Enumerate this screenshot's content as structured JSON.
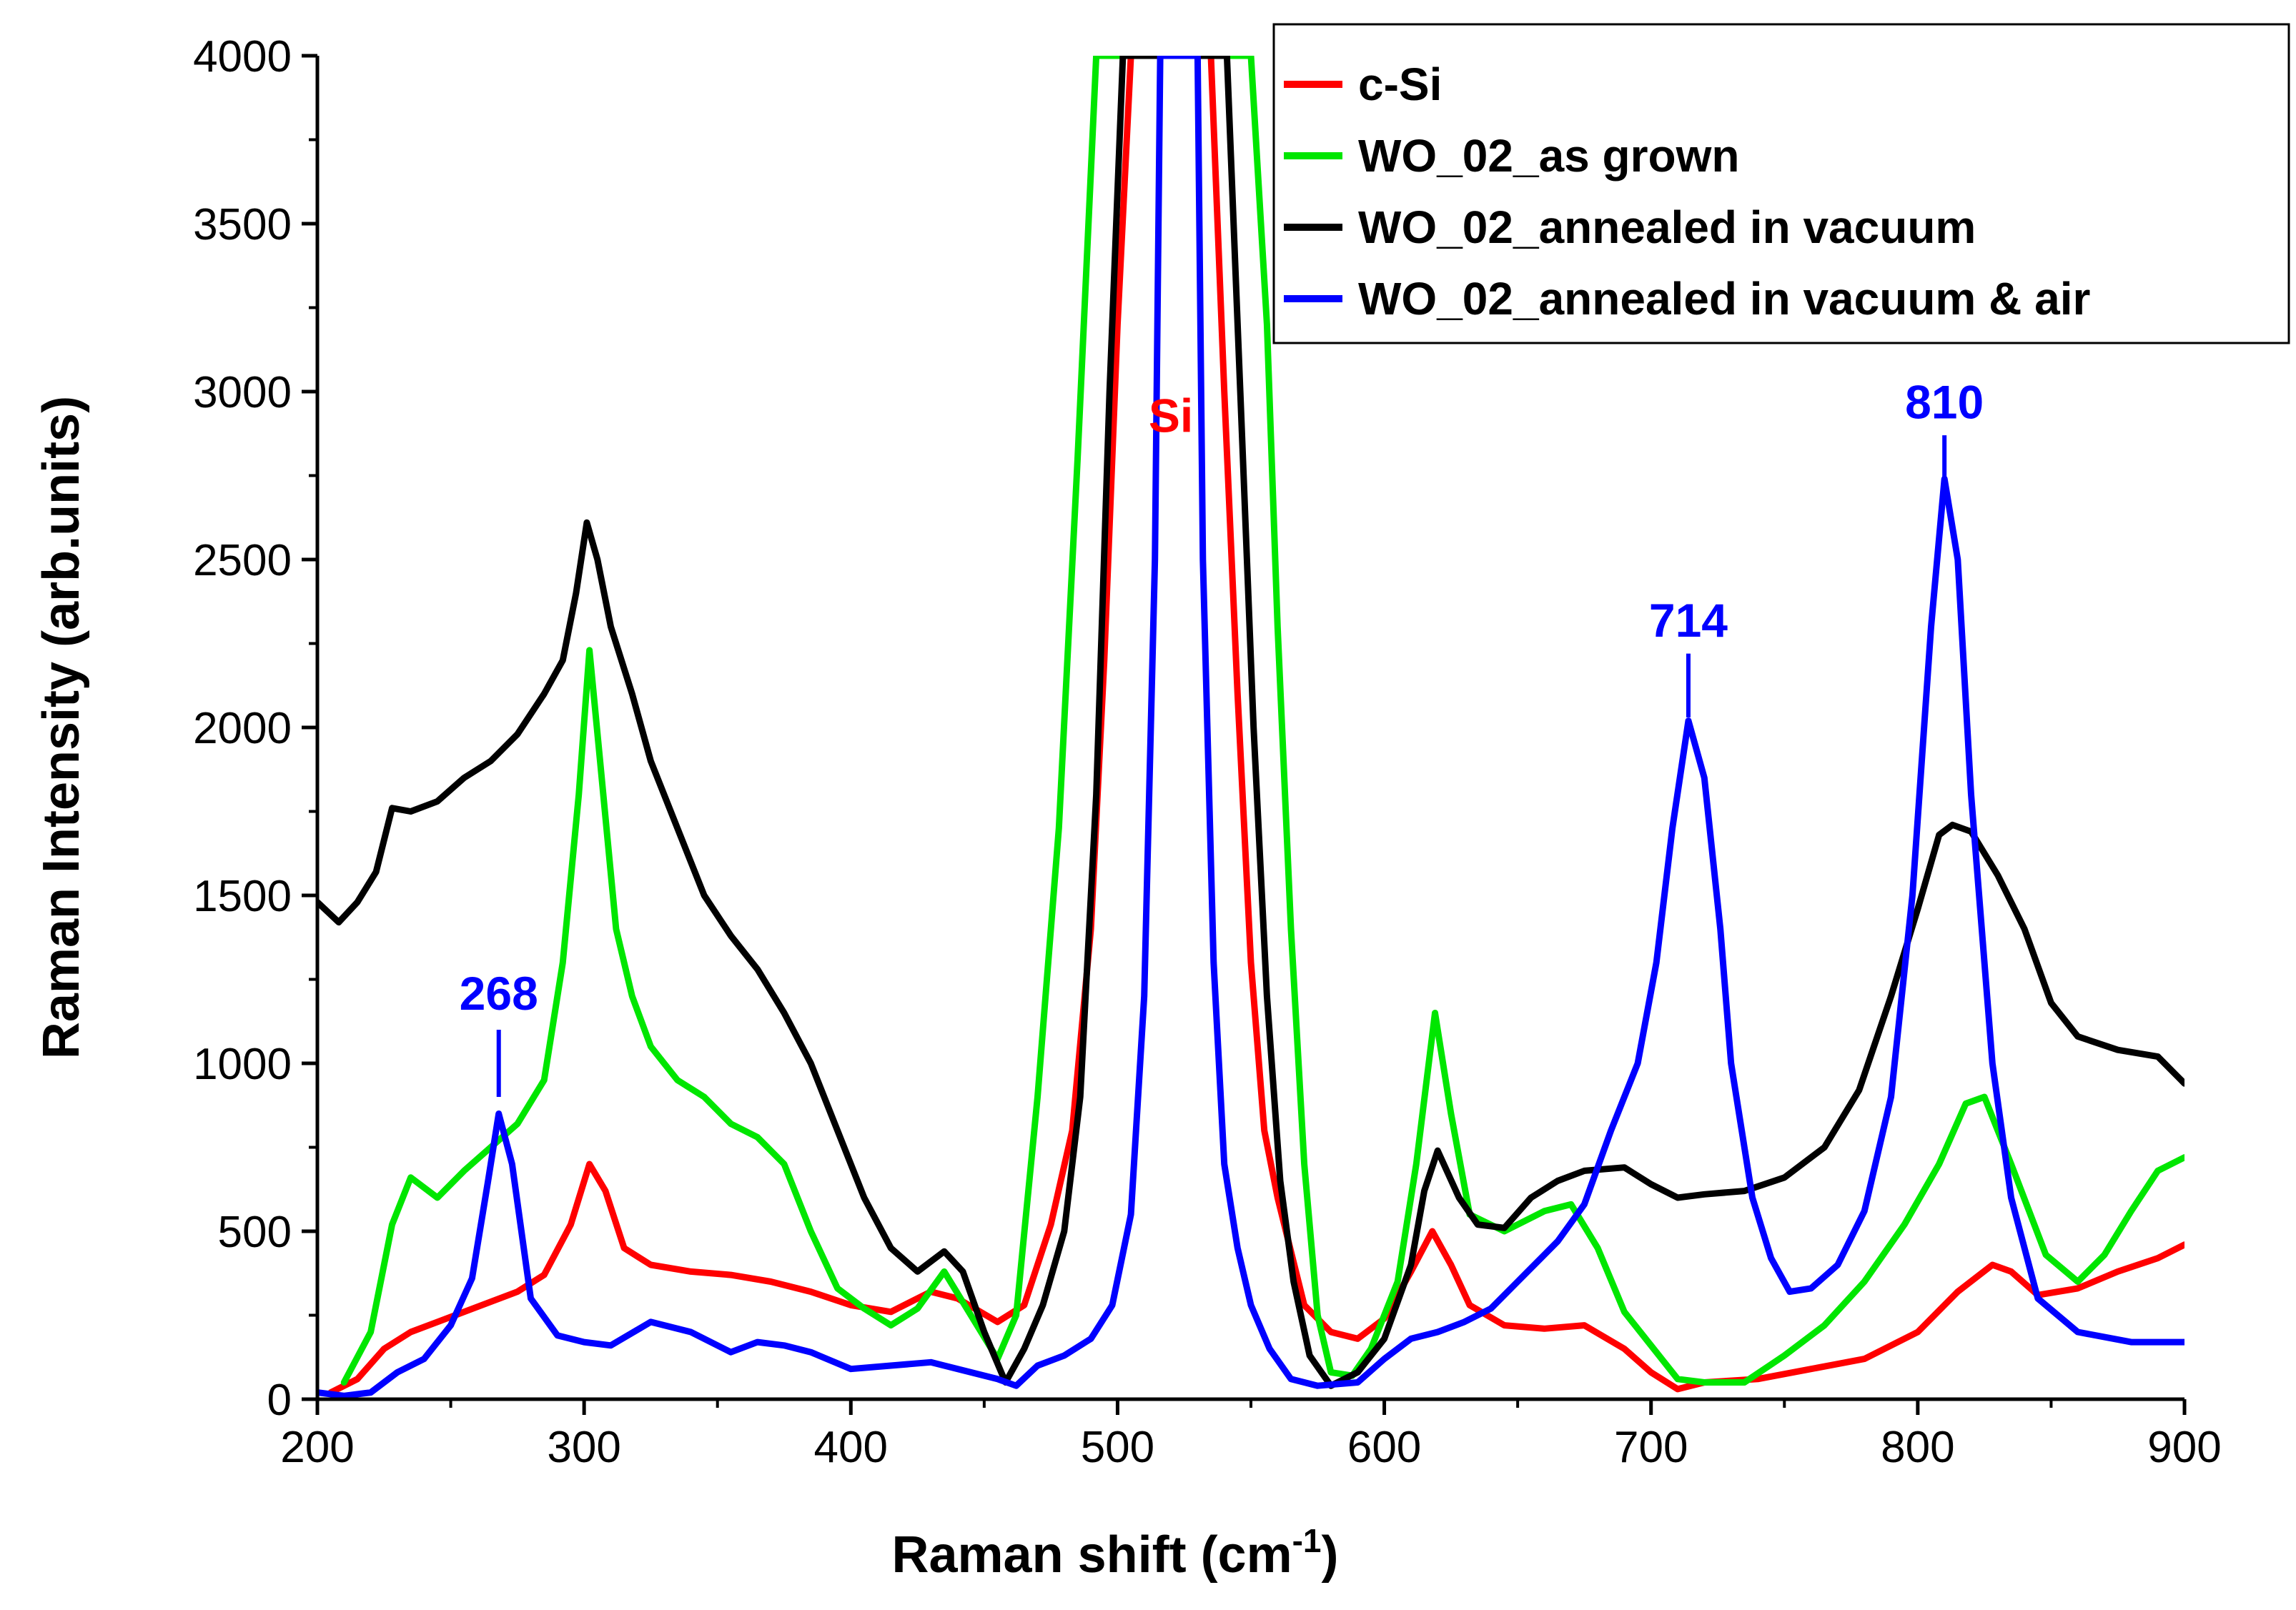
{
  "chart_data": {
    "type": "line",
    "xlabel": "Raman shift (cm",
    "xlabel_sup": "-1",
    "xlabel_end": ")",
    "ylabel": "Raman Intensity (arb.units)",
    "xlim": [
      200,
      900
    ],
    "ylim": [
      0,
      4000
    ],
    "xticks": [
      200,
      300,
      400,
      500,
      600,
      700,
      800,
      900
    ],
    "yticks": [
      0,
      500,
      1000,
      1500,
      2000,
      2500,
      3000,
      3500,
      4000
    ],
    "legend_position": "top-right",
    "series": [
      {
        "name": "c-Si",
        "color": "#ff0000",
        "points": [
          [
            205,
            20
          ],
          [
            215,
            60
          ],
          [
            225,
            150
          ],
          [
            235,
            200
          ],
          [
            245,
            230
          ],
          [
            255,
            260
          ],
          [
            265,
            290
          ],
          [
            275,
            320
          ],
          [
            285,
            370
          ],
          [
            295,
            520
          ],
          [
            302,
            700
          ],
          [
            308,
            620
          ],
          [
            315,
            450
          ],
          [
            325,
            400
          ],
          [
            340,
            380
          ],
          [
            355,
            370
          ],
          [
            370,
            350
          ],
          [
            385,
            320
          ],
          [
            400,
            280
          ],
          [
            415,
            260
          ],
          [
            430,
            320
          ],
          [
            440,
            300
          ],
          [
            455,
            230
          ],
          [
            465,
            280
          ],
          [
            475,
            520
          ],
          [
            483,
            800
          ],
          [
            490,
            1400
          ],
          [
            495,
            2200
          ],
          [
            500,
            3200
          ],
          [
            505,
            4000
          ],
          [
            535,
            4000
          ],
          [
            540,
            3000
          ],
          [
            545,
            2100
          ],
          [
            550,
            1300
          ],
          [
            555,
            800
          ],
          [
            560,
            600
          ],
          [
            570,
            280
          ],
          [
            580,
            200
          ],
          [
            590,
            180
          ],
          [
            600,
            240
          ],
          [
            610,
            380
          ],
          [
            618,
            500
          ],
          [
            625,
            400
          ],
          [
            632,
            280
          ],
          [
            645,
            220
          ],
          [
            660,
            210
          ],
          [
            675,
            220
          ],
          [
            690,
            150
          ],
          [
            700,
            80
          ],
          [
            710,
            30
          ],
          [
            720,
            50
          ],
          [
            740,
            60
          ],
          [
            760,
            90
          ],
          [
            780,
            120
          ],
          [
            800,
            200
          ],
          [
            815,
            320
          ],
          [
            828,
            400
          ],
          [
            835,
            380
          ],
          [
            845,
            310
          ],
          [
            860,
            330
          ],
          [
            875,
            380
          ],
          [
            890,
            420
          ],
          [
            900,
            460
          ]
        ]
      },
      {
        "name": "WO_02_as grown",
        "color": "#00e600",
        "points": [
          [
            210,
            50
          ],
          [
            220,
            200
          ],
          [
            228,
            520
          ],
          [
            235,
            660
          ],
          [
            245,
            600
          ],
          [
            255,
            680
          ],
          [
            265,
            750
          ],
          [
            275,
            820
          ],
          [
            285,
            950
          ],
          [
            292,
            1300
          ],
          [
            298,
            1800
          ],
          [
            302,
            2230
          ],
          [
            306,
            1900
          ],
          [
            312,
            1400
          ],
          [
            318,
            1200
          ],
          [
            325,
            1050
          ],
          [
            335,
            950
          ],
          [
            345,
            900
          ],
          [
            355,
            820
          ],
          [
            365,
            780
          ],
          [
            375,
            700
          ],
          [
            385,
            500
          ],
          [
            395,
            330
          ],
          [
            405,
            270
          ],
          [
            415,
            220
          ],
          [
            425,
            270
          ],
          [
            435,
            380
          ],
          [
            445,
            250
          ],
          [
            455,
            120
          ],
          [
            462,
            250
          ],
          [
            470,
            900
          ],
          [
            478,
            1700
          ],
          [
            485,
            2800
          ],
          [
            492,
            4000
          ],
          [
            550,
            4000
          ],
          [
            556,
            3200
          ],
          [
            560,
            2300
          ],
          [
            565,
            1400
          ],
          [
            570,
            700
          ],
          [
            575,
            250
          ],
          [
            580,
            80
          ],
          [
            588,
            70
          ],
          [
            595,
            150
          ],
          [
            605,
            350
          ],
          [
            612,
            700
          ],
          [
            619,
            1150
          ],
          [
            625,
            850
          ],
          [
            632,
            550
          ],
          [
            645,
            500
          ],
          [
            660,
            560
          ],
          [
            670,
            580
          ],
          [
            680,
            450
          ],
          [
            690,
            260
          ],
          [
            700,
            160
          ],
          [
            710,
            60
          ],
          [
            720,
            50
          ],
          [
            735,
            50
          ],
          [
            750,
            130
          ],
          [
            765,
            220
          ],
          [
            780,
            350
          ],
          [
            795,
            520
          ],
          [
            808,
            700
          ],
          [
            818,
            880
          ],
          [
            825,
            900
          ],
          [
            835,
            700
          ],
          [
            848,
            430
          ],
          [
            860,
            350
          ],
          [
            870,
            430
          ],
          [
            880,
            560
          ],
          [
            890,
            680
          ],
          [
            900,
            720
          ]
        ]
      },
      {
        "name": "WO_02_annealed in vacuum",
        "color": "#000000",
        "points": [
          [
            200,
            1480
          ],
          [
            208,
            1420
          ],
          [
            215,
            1480
          ],
          [
            222,
            1570
          ],
          [
            228,
            1760
          ],
          [
            235,
            1750
          ],
          [
            245,
            1780
          ],
          [
            255,
            1850
          ],
          [
            265,
            1900
          ],
          [
            275,
            1980
          ],
          [
            285,
            2100
          ],
          [
            292,
            2200
          ],
          [
            297,
            2400
          ],
          [
            301,
            2610
          ],
          [
            305,
            2500
          ],
          [
            310,
            2300
          ],
          [
            318,
            2100
          ],
          [
            325,
            1900
          ],
          [
            335,
            1700
          ],
          [
            345,
            1500
          ],
          [
            355,
            1380
          ],
          [
            365,
            1280
          ],
          [
            375,
            1150
          ],
          [
            385,
            1000
          ],
          [
            395,
            800
          ],
          [
            405,
            600
          ],
          [
            415,
            450
          ],
          [
            425,
            380
          ],
          [
            435,
            440
          ],
          [
            442,
            380
          ],
          [
            450,
            200
          ],
          [
            458,
            50
          ],
          [
            465,
            150
          ],
          [
            472,
            280
          ],
          [
            480,
            500
          ],
          [
            486,
            900
          ],
          [
            492,
            1800
          ],
          [
            497,
            3000
          ],
          [
            502,
            4000
          ],
          [
            541,
            4000
          ],
          [
            546,
            3000
          ],
          [
            551,
            2000
          ],
          [
            556,
            1200
          ],
          [
            561,
            650
          ],
          [
            566,
            350
          ],
          [
            572,
            130
          ],
          [
            580,
            40
          ],
          [
            590,
            80
          ],
          [
            600,
            180
          ],
          [
            610,
            400
          ],
          [
            615,
            620
          ],
          [
            620,
            740
          ],
          [
            628,
            600
          ],
          [
            635,
            520
          ],
          [
            645,
            510
          ],
          [
            655,
            600
          ],
          [
            665,
            650
          ],
          [
            675,
            680
          ],
          [
            690,
            690
          ],
          [
            700,
            640
          ],
          [
            710,
            600
          ],
          [
            720,
            610
          ],
          [
            735,
            620
          ],
          [
            750,
            660
          ],
          [
            765,
            750
          ],
          [
            778,
            920
          ],
          [
            790,
            1200
          ],
          [
            800,
            1460
          ],
          [
            808,
            1680
          ],
          [
            813,
            1710
          ],
          [
            820,
            1690
          ],
          [
            830,
            1560
          ],
          [
            840,
            1400
          ],
          [
            850,
            1180
          ],
          [
            860,
            1080
          ],
          [
            875,
            1040
          ],
          [
            890,
            1020
          ],
          [
            900,
            940
          ]
        ]
      },
      {
        "name": "WO_02_annealed in vacuum & air",
        "color": "#0000ff",
        "points": [
          [
            200,
            20
          ],
          [
            210,
            10
          ],
          [
            220,
            20
          ],
          [
            230,
            80
          ],
          [
            240,
            120
          ],
          [
            250,
            220
          ],
          [
            258,
            360
          ],
          [
            264,
            650
          ],
          [
            268,
            850
          ],
          [
            273,
            700
          ],
          [
            280,
            300
          ],
          [
            290,
            190
          ],
          [
            300,
            170
          ],
          [
            310,
            160
          ],
          [
            325,
            230
          ],
          [
            340,
            200
          ],
          [
            355,
            140
          ],
          [
            365,
            170
          ],
          [
            375,
            160
          ],
          [
            385,
            140
          ],
          [
            400,
            90
          ],
          [
            415,
            100
          ],
          [
            430,
            110
          ],
          [
            445,
            80
          ],
          [
            455,
            60
          ],
          [
            462,
            40
          ],
          [
            470,
            100
          ],
          [
            480,
            130
          ],
          [
            490,
            180
          ],
          [
            498,
            280
          ],
          [
            505,
            550
          ],
          [
            510,
            1200
          ],
          [
            514,
            2500
          ],
          [
            516,
            4000
          ],
          [
            530,
            4000
          ],
          [
            532,
            2500
          ],
          [
            536,
            1300
          ],
          [
            540,
            700
          ],
          [
            545,
            450
          ],
          [
            550,
            280
          ],
          [
            557,
            150
          ],
          [
            565,
            60
          ],
          [
            575,
            40
          ],
          [
            590,
            50
          ],
          [
            600,
            120
          ],
          [
            610,
            180
          ],
          [
            620,
            200
          ],
          [
            630,
            230
          ],
          [
            640,
            270
          ],
          [
            650,
            350
          ],
          [
            665,
            470
          ],
          [
            675,
            580
          ],
          [
            685,
            800
          ],
          [
            695,
            1000
          ],
          [
            702,
            1300
          ],
          [
            708,
            1700
          ],
          [
            714,
            2020
          ],
          [
            720,
            1850
          ],
          [
            726,
            1400
          ],
          [
            730,
            1000
          ],
          [
            738,
            600
          ],
          [
            745,
            420
          ],
          [
            752,
            320
          ],
          [
            760,
            330
          ],
          [
            770,
            400
          ],
          [
            780,
            560
          ],
          [
            790,
            900
          ],
          [
            798,
            1500
          ],
          [
            805,
            2300
          ],
          [
            810,
            2740
          ],
          [
            815,
            2500
          ],
          [
            820,
            1800
          ],
          [
            828,
            1000
          ],
          [
            835,
            600
          ],
          [
            845,
            300
          ],
          [
            860,
            200
          ],
          [
            880,
            170
          ],
          [
            900,
            170
          ]
        ]
      }
    ],
    "annotations": [
      {
        "text": "Si",
        "x": 520,
        "y": 2880,
        "color": "#ff0000"
      },
      {
        "text": "268",
        "x": 268,
        "y": 1160,
        "color": "#0000ff",
        "line": [
          268,
          1100,
          900
        ]
      },
      {
        "text": "714",
        "x": 714,
        "y": 2270,
        "color": "#0000ff",
        "line": [
          714,
          2220,
          2030
        ]
      },
      {
        "text": "810",
        "x": 810,
        "y": 2920,
        "color": "#0000ff",
        "line": [
          810,
          2870,
          2740
        ]
      }
    ]
  }
}
